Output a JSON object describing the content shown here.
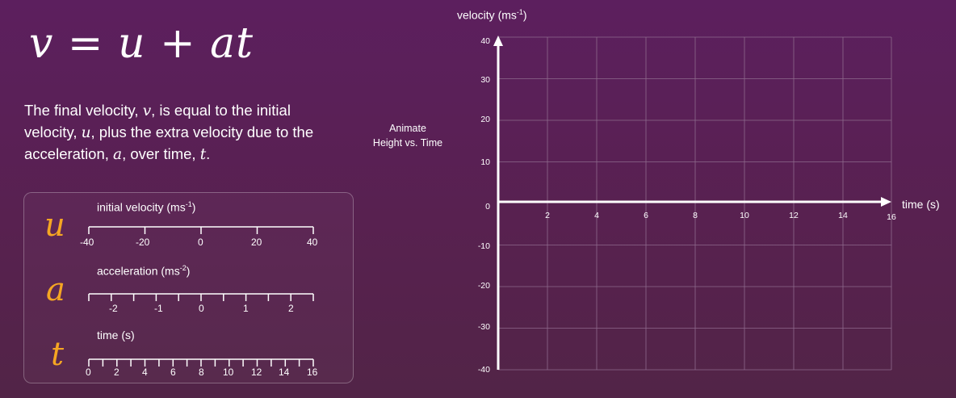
{
  "equation": {
    "v": "v",
    "equals": "=",
    "u": "u",
    "plus": "+",
    "at": "at"
  },
  "description": {
    "part1": "The final velocity, ",
    "v": "v",
    "part2": ", is equal to the initial velocity, ",
    "u": "u",
    "part3": ", plus the extra velocity due to the acceleration, ",
    "a": "a",
    "part4": ", over time, ",
    "t": "t",
    "part5": "."
  },
  "animate_button": {
    "line1": "Animate",
    "line2": "Height vs. Time"
  },
  "sliders": {
    "u": {
      "letter": "u",
      "label": "initial velocity (ms",
      "label_sup": "-1",
      "label_end": ")",
      "ticks": [
        "-40",
        "-20",
        "0",
        "20",
        "40"
      ]
    },
    "a": {
      "letter": "a",
      "label": "acceleration (ms",
      "label_sup": "-2",
      "label_end": ")",
      "ticks": [
        "-2",
        "-1",
        "0",
        "1",
        "2"
      ]
    },
    "t": {
      "letter": "t",
      "label": "time (s)",
      "ticks": [
        "0",
        "2",
        "4",
        "6",
        "8",
        "10",
        "12",
        "14",
        "16"
      ]
    }
  },
  "graph": {
    "y_title": "velocity (ms",
    "y_title_sup": "-1",
    "y_title_end": ")",
    "x_title": "time (s)",
    "y_ticks": [
      "40",
      "30",
      "20",
      "10",
      "0",
      "-10",
      "-20",
      "-30",
      "-40"
    ],
    "x_ticks": [
      "2",
      "4",
      "6",
      "8",
      "10",
      "12",
      "14",
      "16"
    ]
  },
  "colors": {
    "background": "#5a205a",
    "accent": "#f5a623",
    "grid": "#8a5a88",
    "axis": "#ffffff"
  }
}
